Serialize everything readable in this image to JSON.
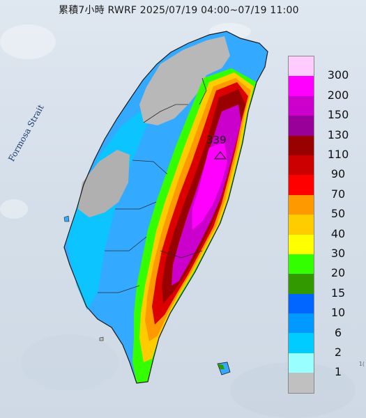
{
  "header": {
    "title": "累積7小時 RWRF 2025/07/19 04:00~07/19 11:00"
  },
  "map": {
    "strait_label": "Formosa Strait",
    "max_rainfall": "339",
    "edge_mark": "1("
  },
  "legend": {
    "items": [
      {
        "label": "300",
        "color": "#ffccff"
      },
      {
        "label": "200",
        "color": "#ff00ff"
      },
      {
        "label": "150",
        "color": "#cc00cc"
      },
      {
        "label": "130",
        "color": "#990099"
      },
      {
        "label": "110",
        "color": "#990000"
      },
      {
        "label": "90",
        "color": "#cc0000"
      },
      {
        "label": "70",
        "color": "#ff0000"
      },
      {
        "label": "50",
        "color": "#ff9900"
      },
      {
        "label": "40",
        "color": "#ffcc00"
      },
      {
        "label": "30",
        "color": "#ffff00"
      },
      {
        "label": "20",
        "color": "#33ff00"
      },
      {
        "label": "15",
        "color": "#339900"
      },
      {
        "label": "10",
        "color": "#0066ff"
      },
      {
        "label": "6",
        "color": "#0099ff"
      },
      {
        "label": "2",
        "color": "#00ccff"
      },
      {
        "label": "1",
        "color": "#99ffff"
      },
      {
        "label": "",
        "color": "#c0c0c0"
      }
    ]
  }
}
